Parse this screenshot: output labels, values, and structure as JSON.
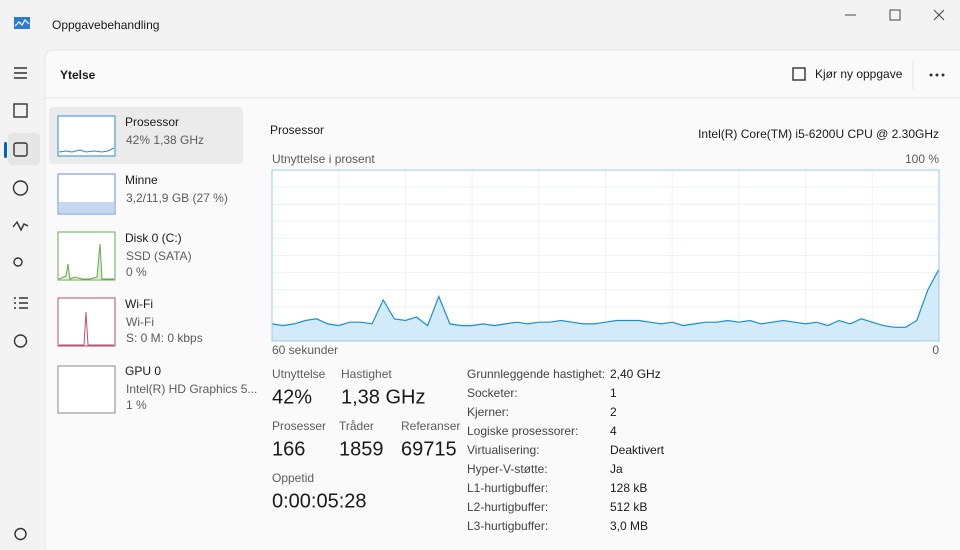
{
  "title_bar": {
    "title": "Oppgavebehandling"
  },
  "header": {
    "title": "Ytelse",
    "run_task": "Kjør ny oppgave"
  },
  "sidebar": [
    {
      "name": "Prosessor",
      "lines": [
        "42%  1,38 GHz"
      ]
    },
    {
      "name": "Minne",
      "lines": [
        "3,2/11,9 GB (27 %)"
      ]
    },
    {
      "name": "Disk 0 (C:)",
      "lines": [
        "SSD (SATA)",
        "0 %"
      ]
    },
    {
      "name": "Wi-Fi",
      "lines": [
        "Wi-Fi",
        "S: 0  M: 0 kbps"
      ]
    },
    {
      "name": "GPU 0",
      "lines": [
        "Intel(R) HD Graphics 5...",
        "1 %"
      ]
    }
  ],
  "main": {
    "title": "Prosessor",
    "cpu_name": "Intel(R) Core(TM) i5-6200U CPU @ 2.30GHz",
    "graph": {
      "label": "Utnyttelse i prosent",
      "max_label": "100 %",
      "time_label": "60 sekunder",
      "end_label": "0",
      "ylim": [
        0,
        100
      ],
      "values": [
        10,
        9,
        10,
        12,
        13,
        10,
        9,
        11,
        11,
        10,
        24,
        13,
        12,
        14,
        9,
        26,
        10,
        9,
        9,
        10,
        9,
        10,
        11,
        10,
        11,
        11,
        12,
        11,
        10,
        10,
        11,
        12,
        12,
        12,
        11,
        10,
        11,
        9,
        10,
        11,
        11,
        12,
        11,
        12,
        10,
        11,
        12,
        11,
        10,
        11,
        9,
        12,
        10,
        13,
        11,
        9,
        8,
        8,
        12,
        30,
        42
      ]
    },
    "stats": [
      {
        "label": "Utnyttelse",
        "value": "42%"
      },
      {
        "label": "Hastighet",
        "value": "1,38 GHz"
      },
      {
        "label": "Prosesser",
        "value": "166"
      },
      {
        "label": "Tråder",
        "value": "1859"
      },
      {
        "label": "Referanser",
        "value": "69715"
      },
      {
        "label": "Oppetid",
        "value": "0:00:05:28"
      }
    ],
    "specs": [
      {
        "label": "Grunnleggende hastighet:",
        "value": "2,40 GHz"
      },
      {
        "label": "Socketer:",
        "value": "1"
      },
      {
        "label": "Kjerner:",
        "value": "2"
      },
      {
        "label": "Logiske prosessorer:",
        "value": "4"
      },
      {
        "label": "Virtualisering:",
        "value": "Deaktivert"
      },
      {
        "label": "Hyper-V-støtte:",
        "value": "Ja"
      },
      {
        "label": "L1-hurtigbuffer:",
        "value": "128 kB"
      },
      {
        "label": "L2-hurtigbuffer:",
        "value": "512 kB"
      },
      {
        "label": "L3-hurtigbuffer:",
        "value": "3,0 MB"
      }
    ]
  }
}
